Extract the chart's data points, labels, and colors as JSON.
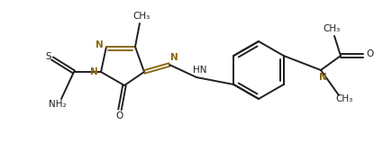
{
  "bg_color": "#ffffff",
  "bond_color": "#231f20",
  "N_color": "#8B6914",
  "line_width": 1.4,
  "font_size": 7.5,
  "figsize": [
    4.25,
    1.68
  ],
  "dpi": 100,
  "xlim": [
    0,
    425
  ],
  "ylim": [
    0,
    168
  ]
}
